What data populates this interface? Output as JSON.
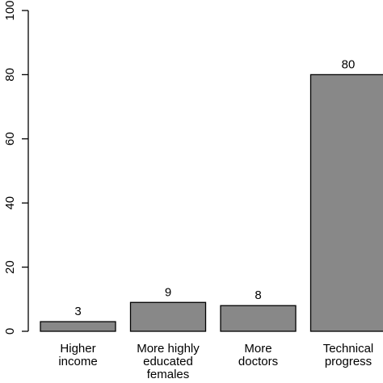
{
  "chart_data": {
    "type": "bar",
    "categories": [
      [
        "Higher",
        "income"
      ],
      [
        "More highly",
        "educated",
        "females"
      ],
      [
        "More",
        "doctors"
      ],
      [
        "Technical",
        "progress"
      ]
    ],
    "values": [
      3,
      9,
      8,
      80
    ],
    "data_labels": [
      "3",
      "9",
      "8",
      "80"
    ],
    "y_ticks": [
      0,
      20,
      40,
      60,
      80,
      100
    ],
    "ylim": [
      0,
      100
    ],
    "grid": false,
    "bar_color": "#888888",
    "bar_edge_color": "#000000"
  }
}
